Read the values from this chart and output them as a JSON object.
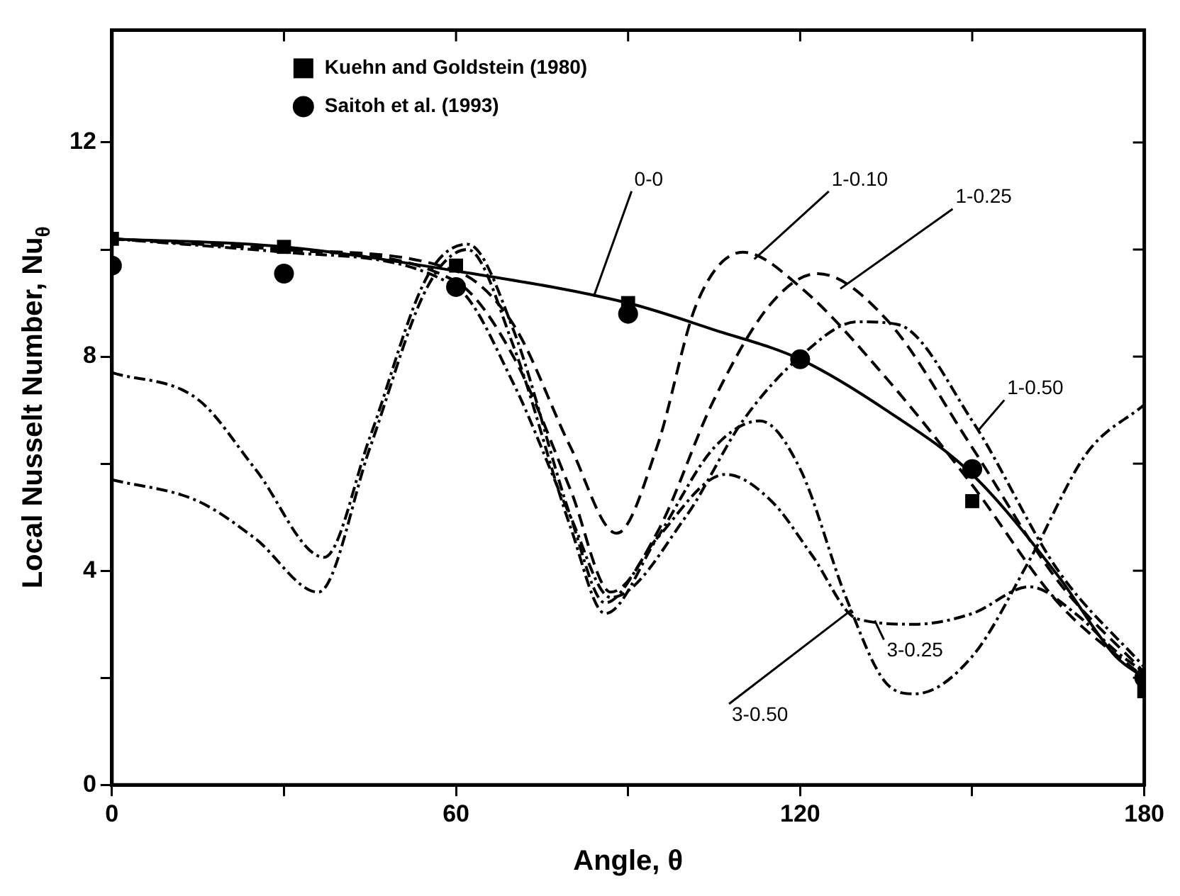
{
  "chart_data": {
    "type": "line",
    "xlabel": "Angle, θ",
    "ylabel": "Local Nusselt Number, Nu$_{θ}$",
    "xlim": [
      0,
      180
    ],
    "ylim": [
      0,
      14.1
    ],
    "xticks": [
      0,
      {
        "value": 30,
        "label": null
      },
      60,
      {
        "value": 90,
        "label": null
      },
      120,
      {
        "value": 150,
        "label": null
      },
      180
    ],
    "yticks": [
      0,
      {
        "value": 2,
        "label": null
      },
      4,
      {
        "value": 6,
        "label": null
      },
      8,
      {
        "value": 10,
        "label": null
      },
      12
    ],
    "grid": false,
    "legend": "top left",
    "series": [
      {
        "name": "0-0",
        "type": "line",
        "color": "#000000",
        "line_style": "solid",
        "marker": "none",
        "x": [
          0,
          30,
          60,
          90,
          105,
          120,
          135,
          150,
          165,
          175,
          180
        ],
        "values": [
          10.2,
          10.05,
          9.6,
          9.0,
          8.5,
          7.95,
          7.0,
          5.8,
          3.9,
          2.4,
          2.0
        ]
      },
      {
        "name": "1-0.10",
        "type": "line",
        "color": "#000000",
        "line_style": "dashed",
        "marker": "none",
        "x": [
          0,
          30,
          60,
          70,
          80,
          88,
          95,
          102,
          110,
          120,
          135,
          150,
          165,
          180
        ],
        "values": [
          10.2,
          10.0,
          9.6,
          8.6,
          6.3,
          4.7,
          6.3,
          9.0,
          9.95,
          9.3,
          7.6,
          5.6,
          3.4,
          2.0
        ]
      },
      {
        "name": "1-0.25",
        "type": "line",
        "color": "#000000",
        "line_style": "dashed",
        "marker": "none",
        "x": [
          0,
          30,
          60,
          70,
          80,
          87,
          95,
          105,
          115,
          123,
          135,
          150,
          165,
          180
        ],
        "values": [
          10.2,
          10.0,
          9.4,
          8.0,
          5.5,
          3.6,
          4.7,
          7.2,
          9.0,
          9.55,
          8.7,
          6.3,
          3.8,
          2.1
        ]
      },
      {
        "name": "1-0.50",
        "type": "line",
        "color": "#000000",
        "line_style": "dotted",
        "marker": "none",
        "x": [
          0,
          30,
          60,
          70,
          80,
          87,
          100,
          110,
          120,
          130,
          137,
          150,
          165,
          180
        ],
        "values": [
          10.2,
          9.95,
          9.3,
          7.5,
          5.0,
          3.5,
          5.0,
          6.8,
          8.0,
          8.65,
          8.6,
          6.8,
          4.0,
          2.2
        ]
      },
      {
        "name": "3-0.25",
        "type": "line",
        "color": "#000000",
        "line_style": "dotted",
        "marker": "none",
        "x": [
          0,
          15,
          25,
          37,
          45,
          55,
          62,
          70,
          80,
          86,
          95,
          107,
          115,
          122,
          130,
          140,
          150,
          160,
          168,
          175,
          180
        ],
        "values": [
          7.7,
          7.2,
          5.9,
          4.25,
          6.5,
          9.5,
          10.1,
          8.5,
          5.0,
          3.4,
          4.6,
          5.8,
          5.3,
          4.3,
          3.1,
          3.0,
          3.2,
          3.7,
          3.2,
          2.5,
          2.1
        ]
      },
      {
        "name": "3-0.50",
        "type": "line",
        "color": "#000000",
        "line_style": "dotted",
        "marker": "none",
        "x": [
          0,
          15,
          25,
          36,
          45,
          55,
          62,
          70,
          80,
          86,
          95,
          105,
          113,
          120,
          128,
          135,
          140,
          150,
          160,
          170,
          180
        ],
        "values": [
          5.7,
          5.3,
          4.6,
          3.6,
          6.3,
          9.3,
          10.0,
          8.2,
          4.8,
          3.2,
          4.6,
          6.3,
          6.8,
          5.9,
          3.5,
          1.9,
          1.7,
          2.4,
          4.2,
          6.2,
          7.1
        ]
      },
      {
        "name": "Kuehn and Goldstein (1980)",
        "type": "scatter",
        "color": "#000000",
        "marker": "square",
        "x": [
          0,
          30,
          60,
          90,
          150,
          180
        ],
        "values": [
          10.2,
          10.05,
          9.7,
          9.0,
          5.3,
          1.75
        ]
      },
      {
        "name": "Saitoh et al. (1993)",
        "type": "scatter",
        "color": "#000000",
        "marker": "circle",
        "x": [
          0,
          30,
          60,
          90,
          120,
          150,
          180
        ],
        "values": [
          9.7,
          9.55,
          9.3,
          8.8,
          7.95,
          5.9,
          2.0
        ]
      }
    ]
  }
}
